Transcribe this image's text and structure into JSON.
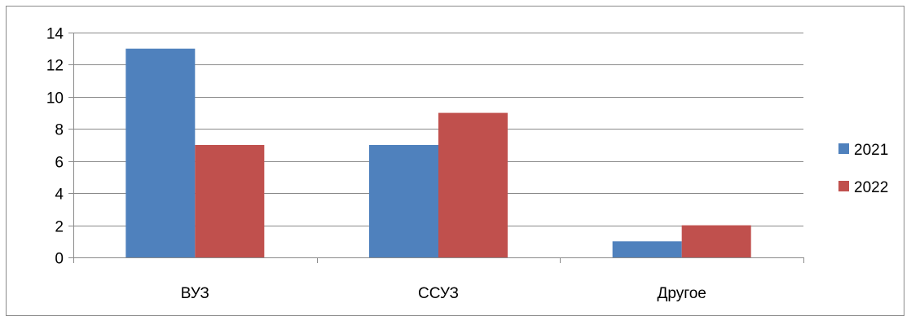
{
  "chart_data": {
    "type": "bar",
    "title": "",
    "xlabel": "",
    "ylabel": "",
    "categories": [
      "ВУЗ",
      "ССУЗ",
      "Другое"
    ],
    "series": [
      {
        "name": "2021",
        "values": [
          13,
          7,
          1
        ],
        "color": "#4F81BD"
      },
      {
        "name": "2022",
        "values": [
          7,
          9,
          2
        ],
        "color": "#C0504D"
      }
    ],
    "ylim": [
      0,
      14
    ],
    "yticks": [
      "0",
      "2",
      "4",
      "6",
      "8",
      "10",
      "12",
      "14"
    ],
    "grid": true,
    "legend": "right"
  }
}
